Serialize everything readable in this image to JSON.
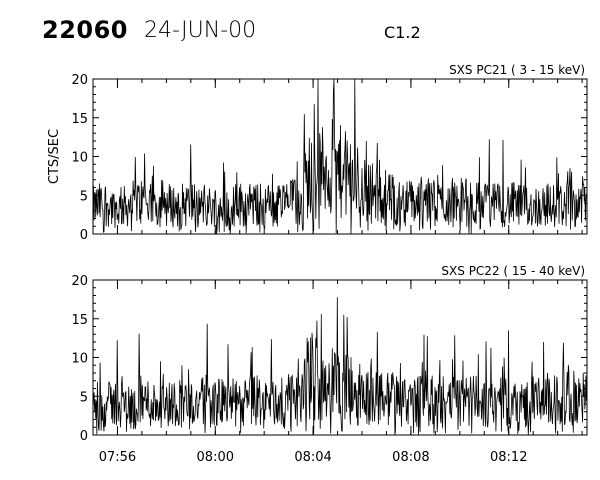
{
  "header": {
    "event_id": "22060",
    "date": "24-JUN-00",
    "flare_class": "C1.2"
  },
  "chart_data": [
    {
      "type": "line",
      "title": "SXS PC21  (  3 - 15 keV)",
      "ylabel": "CTS/SEC",
      "xlabel": "",
      "x_unit": "minutes after 07:00 UT",
      "xlim": [
        55.0,
        75.2
      ],
      "ylim": [
        0,
        20
      ],
      "yticks": [
        "0",
        "5",
        "10",
        "15",
        "20"
      ],
      "xticks": [
        "07:56",
        "08:00",
        "08:04",
        "08:08",
        "08:12"
      ],
      "grid": false,
      "series": [
        {
          "x": [
            55.0,
            55.5,
            56.0,
            56.5,
            57.0,
            57.5,
            58.0,
            58.5,
            59.0,
            59.5,
            60.0,
            60.5,
            61.0,
            61.5,
            62.0,
            62.5,
            63.0,
            63.5,
            63.8,
            64.0,
            64.3,
            64.6,
            65.0,
            65.3,
            65.6,
            66.0,
            66.5,
            67.0,
            67.5,
            68.0,
            68.5,
            69.0,
            69.5,
            70.0,
            70.5,
            71.0,
            71.5,
            72.0,
            72.5,
            73.0,
            73.5,
            74.0,
            74.5,
            75.0
          ],
          "y": [
            3.5,
            4.0,
            3.2,
            3.8,
            4.2,
            3.5,
            3.8,
            3.6,
            4.0,
            3.4,
            3.7,
            3.5,
            3.9,
            3.6,
            3.8,
            3.5,
            4.2,
            4.0,
            7.5,
            8.0,
            7.8,
            8.5,
            8.2,
            7.6,
            7.0,
            6.2,
            5.2,
            4.6,
            4.2,
            4.0,
            4.3,
            3.9,
            4.1,
            4.4,
            3.8,
            4.0,
            3.7,
            3.9,
            3.6,
            3.5,
            3.8,
            3.6,
            4.0,
            4.2
          ]
        }
      ]
    },
    {
      "type": "line",
      "title": "SXS PC22  ( 15 - 40 keV)",
      "ylabel": "",
      "xlabel": "",
      "x_unit": "minutes after 07:00 UT",
      "xlim": [
        55.0,
        75.2
      ],
      "ylim": [
        0,
        20
      ],
      "yticks": [
        "0",
        "5",
        "10",
        "15",
        "20"
      ],
      "xticks": [
        "07:56",
        "08:00",
        "08:04",
        "08:08",
        "08:12"
      ],
      "grid": false,
      "series": [
        {
          "x": [
            55.0,
            55.5,
            56.0,
            56.5,
            57.0,
            57.5,
            58.0,
            58.5,
            59.0,
            59.5,
            60.0,
            60.5,
            61.0,
            61.5,
            62.0,
            62.5,
            63.0,
            63.5,
            63.8,
            64.0,
            64.3,
            64.6,
            65.0,
            65.3,
            65.6,
            66.0,
            66.5,
            67.0,
            67.5,
            68.0,
            68.5,
            69.0,
            69.5,
            70.0,
            70.5,
            71.0,
            71.5,
            72.0,
            72.5,
            73.0,
            73.5,
            74.0,
            74.5,
            75.0
          ],
          "y": [
            4.0,
            3.8,
            4.2,
            3.7,
            4.4,
            4.0,
            3.9,
            4.3,
            4.0,
            4.2,
            4.1,
            4.3,
            3.9,
            4.4,
            4.2,
            4.0,
            4.5,
            4.3,
            7.0,
            7.8,
            7.2,
            6.8,
            6.5,
            6.0,
            5.6,
            5.2,
            4.9,
            4.7,
            4.5,
            4.6,
            4.4,
            4.3,
            4.5,
            4.2,
            4.4,
            4.1,
            4.3,
            4.2,
            4.0,
            4.3,
            4.1,
            4.5,
            4.8,
            4.6
          ]
        }
      ]
    }
  ]
}
